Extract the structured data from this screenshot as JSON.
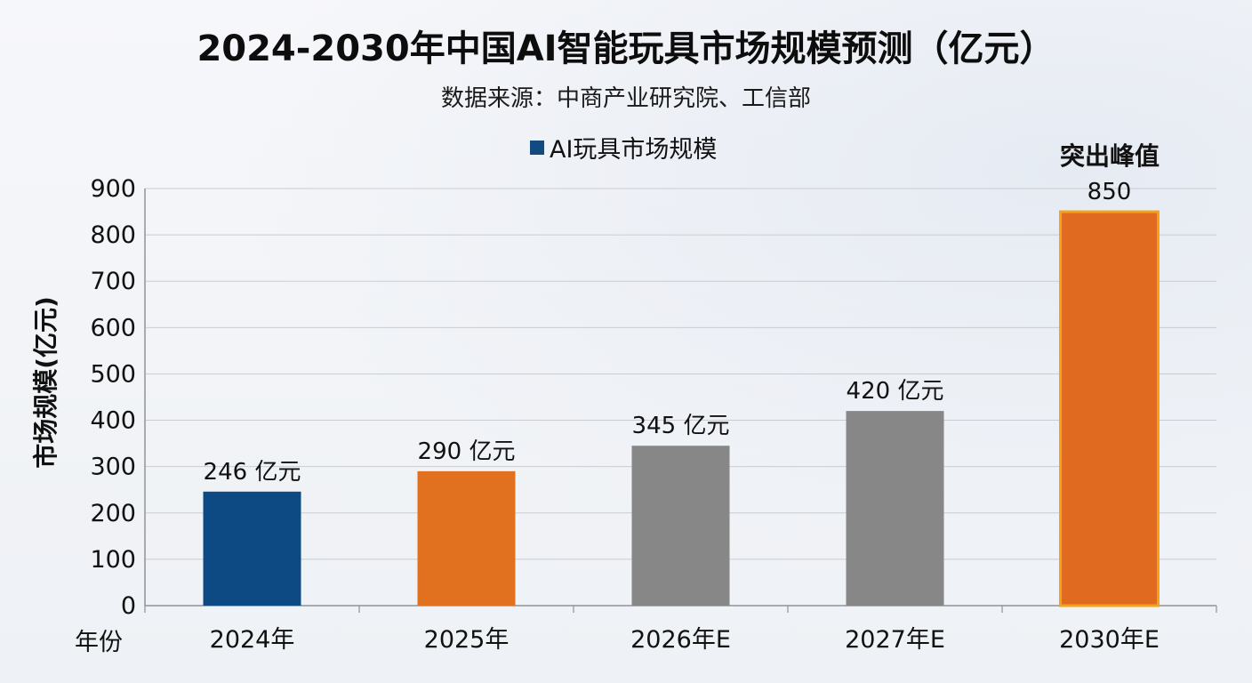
{
  "chart_data": {
    "type": "bar",
    "title": "2024-2030年中国AI智能玩具市场规模预测（亿元）",
    "subtitle": "数据来源：中商产业研究院、工信部",
    "legend": [
      "AI玩具市场规模"
    ],
    "xlabel": "年份",
    "ylabel": "市场规模(亿元)",
    "categories": [
      "2024年",
      "2025年",
      "2026年E",
      "2027年E",
      "2030年E"
    ],
    "values": [
      246,
      290,
      345,
      420,
      850
    ],
    "data_labels": [
      "246 亿元",
      "290 亿元",
      "345 亿元",
      "420 亿元",
      "850"
    ],
    "ylim": [
      0,
      900
    ],
    "yticks": [
      0,
      100,
      200,
      300,
      400,
      500,
      600,
      700,
      800,
      900
    ],
    "grid": true,
    "legend_position": "top",
    "annotation": "突出峰值",
    "colors": {
      "legend": "#124a82",
      "bars": [
        "#0d4a84",
        "#e2711f",
        "#878787",
        "#878787",
        "#e06a1f"
      ],
      "highlight_border": "#f5a21a",
      "gridline": "#c9ccd1"
    }
  }
}
